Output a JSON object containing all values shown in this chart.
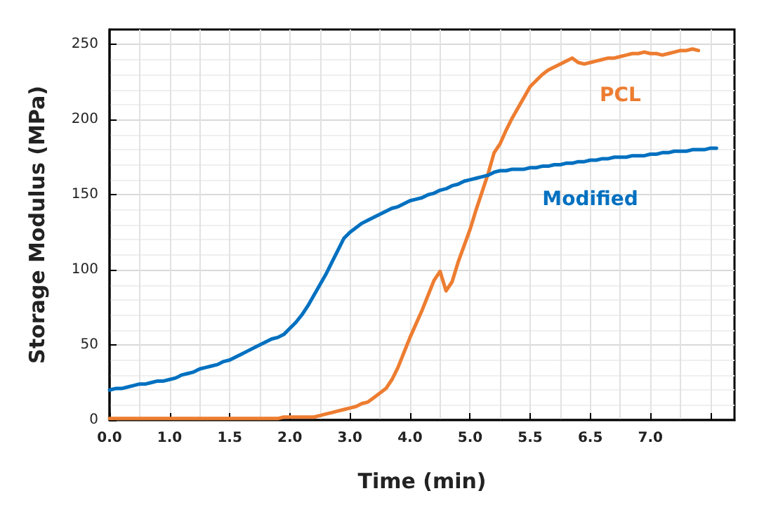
{
  "chart_data": {
    "type": "line",
    "xlabel": "Time (min)",
    "ylabel": "Storage Modulus (MPa)",
    "categories": [
      "0.0",
      null,
      null,
      null,
      null,
      null,
      null,
      null,
      null,
      null,
      "1.0",
      null,
      null,
      null,
      null,
      null,
      null,
      null,
      null,
      null,
      "1.5",
      null,
      null,
      null,
      null,
      null,
      null,
      null,
      null,
      null,
      "2.0",
      null,
      null,
      null,
      null,
      null,
      null,
      null,
      null,
      null,
      "3.0",
      null,
      null,
      null,
      null,
      null,
      null,
      null,
      null,
      null,
      "4.0",
      null,
      null,
      null,
      null,
      null,
      null,
      null,
      null,
      null,
      "5.0",
      null,
      null,
      null,
      null,
      null,
      null,
      null,
      null,
      null,
      "5.5",
      null,
      null,
      null,
      null,
      null,
      null,
      null,
      null,
      null,
      "6.5",
      null,
      null,
      null,
      null,
      null,
      null,
      null,
      null,
      null,
      "7.0",
      null,
      null,
      null,
      null,
      null,
      null,
      null,
      null,
      null,
      null,
      null,
      null,
      null,
      null
    ],
    "ylim": [
      0,
      260
    ],
    "yticks": [
      0,
      50,
      100,
      150,
      200,
      250
    ],
    "grid": true,
    "legend": false,
    "marker": "none",
    "line_style": "solid",
    "series": [
      {
        "name": "PCL",
        "color": "#ed7d31",
        "values": [
          1,
          1,
          1,
          1,
          1,
          1,
          1,
          1,
          1,
          1,
          1,
          1,
          1,
          1,
          1,
          1,
          1,
          1,
          1,
          1,
          1,
          1,
          1,
          1,
          1,
          1,
          1,
          1,
          1,
          2,
          2,
          2,
          2,
          2,
          2,
          3,
          4,
          5,
          6,
          7,
          8,
          9,
          11,
          12,
          15,
          18,
          21,
          27,
          35,
          45,
          55,
          64,
          73,
          83,
          93,
          99,
          86,
          92,
          105,
          116,
          127,
          140,
          152,
          164,
          178,
          184,
          193,
          201,
          208,
          215,
          222,
          226,
          230,
          233,
          235,
          237,
          239,
          241,
          238,
          237,
          238,
          239,
          240,
          241,
          241,
          242,
          243,
          244,
          244,
          245,
          244,
          244,
          243,
          244,
          245,
          246,
          246,
          247,
          246,
          null,
          null,
          null,
          null,
          null,
          null
        ]
      },
      {
        "name": "Modified",
        "color": "#0070c0",
        "values": [
          20,
          21,
          21,
          22,
          23,
          24,
          24,
          25,
          26,
          26,
          27,
          28,
          30,
          31,
          32,
          34,
          35,
          36,
          37,
          39,
          40,
          42,
          44,
          46,
          48,
          50,
          52,
          54,
          55,
          57,
          61,
          65,
          70,
          76,
          83,
          90,
          97,
          105,
          113,
          121,
          125,
          128,
          131,
          133,
          135,
          137,
          139,
          141,
          142,
          144,
          146,
          147,
          148,
          150,
          151,
          153,
          154,
          156,
          157,
          159,
          160,
          161,
          162,
          163,
          165,
          166,
          166,
          167,
          167,
          167,
          168,
          168,
          169,
          169,
          170,
          170,
          171,
          171,
          172,
          172,
          173,
          173,
          174,
          174,
          175,
          175,
          175,
          176,
          176,
          176,
          177,
          177,
          178,
          178,
          179,
          179,
          179,
          180,
          180,
          180,
          181,
          181,
          null,
          null,
          null
        ]
      }
    ]
  }
}
